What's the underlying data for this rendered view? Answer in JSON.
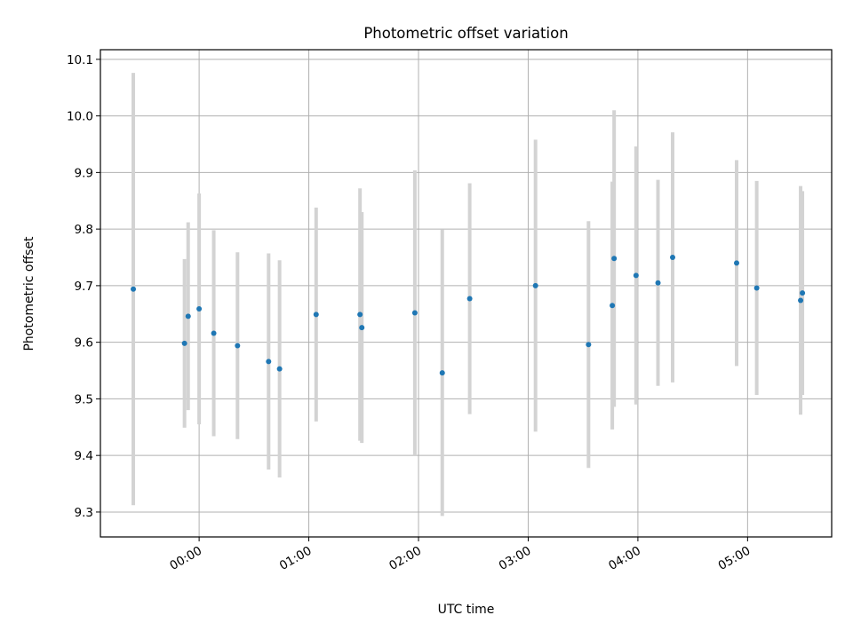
{
  "chart_data": {
    "type": "scatter",
    "title": "Photometric offset variation",
    "xlabel": "UTC time",
    "ylabel": "Photometric offset",
    "x_unit": "UTC hours:minutes",
    "xlim": [
      "-00:54",
      "05:46"
    ],
    "ylim": [
      9.256,
      10.117
    ],
    "grid": true,
    "xticks": [
      "00:00",
      "01:00",
      "02:00",
      "03:00",
      "04:00",
      "05:00"
    ],
    "yticks": [
      "9.3",
      "9.4",
      "9.5",
      "9.6",
      "9.7",
      "9.8",
      "9.9",
      "10.0",
      "10.1"
    ],
    "colors": {
      "point": "#1f77b4",
      "errorbar": "#d3d3d3",
      "grid": "#b0b0b0"
    },
    "series": [
      {
        "points": [
          {
            "x": "-00:36",
            "y": 9.694,
            "err": 0.382
          },
          {
            "x": "-00:08",
            "y": 9.598,
            "err": 0.149
          },
          {
            "x": "-00:06",
            "y": 9.646,
            "err": 0.166
          },
          {
            "x": "00:00",
            "y": 9.659,
            "err": 0.204
          },
          {
            "x": "00:08",
            "y": 9.616,
            "err": 0.182
          },
          {
            "x": "00:21",
            "y": 9.594,
            "err": 0.165
          },
          {
            "x": "00:38",
            "y": 9.566,
            "err": 0.191
          },
          {
            "x": "00:44",
            "y": 9.553,
            "err": 0.192
          },
          {
            "x": "01:04",
            "y": 9.649,
            "err": 0.189
          },
          {
            "x": "01:28",
            "y": 9.649,
            "err": 0.223
          },
          {
            "x": "01:29",
            "y": 9.626,
            "err": 0.204
          },
          {
            "x": "01:58",
            "y": 9.652,
            "err": 0.252
          },
          {
            "x": "02:13",
            "y": 9.546,
            "err": 0.253
          },
          {
            "x": "02:28",
            "y": 9.677,
            "err": 0.204
          },
          {
            "x": "03:04",
            "y": 9.7,
            "err": 0.258
          },
          {
            "x": "03:33",
            "y": 9.596,
            "err": 0.218
          },
          {
            "x": "03:46",
            "y": 9.665,
            "err": 0.219
          },
          {
            "x": "03:47",
            "y": 9.748,
            "err": 0.262
          },
          {
            "x": "03:59",
            "y": 9.718,
            "err": 0.228
          },
          {
            "x": "04:11",
            "y": 9.705,
            "err": 0.182
          },
          {
            "x": "04:19",
            "y": 9.75,
            "err": 0.221
          },
          {
            "x": "04:54",
            "y": 9.74,
            "err": 0.182
          },
          {
            "x": "05:05",
            "y": 9.696,
            "err": 0.189
          },
          {
            "x": "05:29",
            "y": 9.674,
            "err": 0.202
          },
          {
            "x": "05:30",
            "y": 9.687,
            "err": 0.18
          }
        ]
      }
    ]
  }
}
